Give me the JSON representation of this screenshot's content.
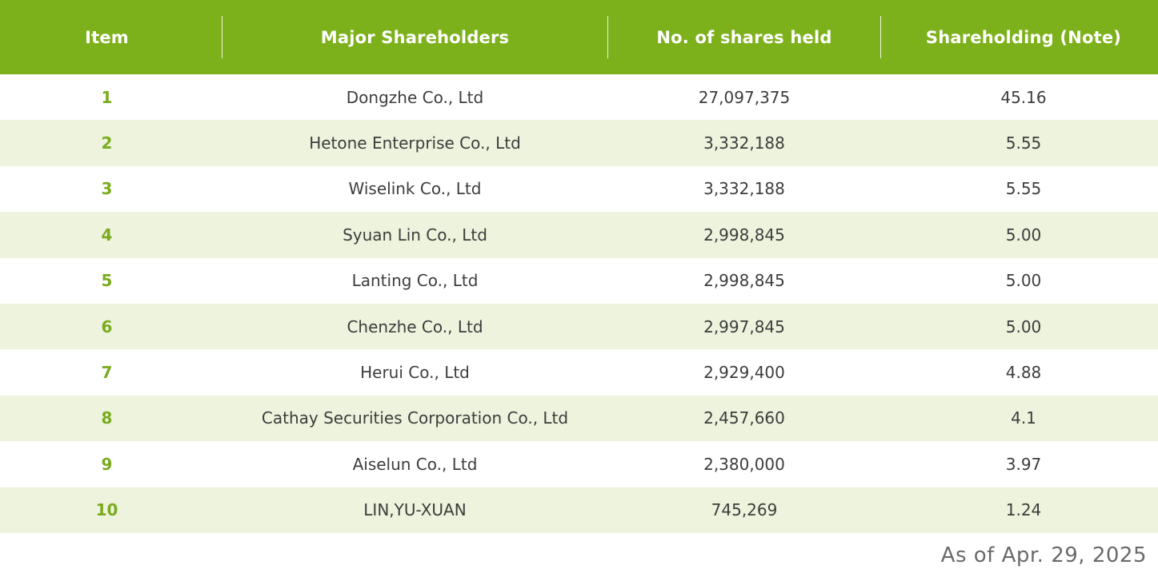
{
  "colors": {
    "header_bg": "#7db11c",
    "item_number": "#7aab1f",
    "row_alt_bg": "#edf3dc"
  },
  "table": {
    "headers": [
      "Item",
      "Major Shareholders",
      "No. of shares held",
      "Shareholding (Note)"
    ],
    "rows": [
      {
        "item": "1",
        "name": "Dongzhe Co., Ltd",
        "shares": "27,097,375",
        "holding": "45.16"
      },
      {
        "item": "2",
        "name": "Hetone Enterprise Co., Ltd",
        "shares": "3,332,188",
        "holding": "5.55"
      },
      {
        "item": "3",
        "name": "Wiselink Co., Ltd",
        "shares": "3,332,188",
        "holding": "5.55"
      },
      {
        "item": "4",
        "name": "Syuan Lin Co., Ltd",
        "shares": "2,998,845",
        "holding": "5.00"
      },
      {
        "item": "5",
        "name": "Lanting Co., Ltd",
        "shares": "2,998,845",
        "holding": "5.00"
      },
      {
        "item": "6",
        "name": "Chenzhe Co., Ltd",
        "shares": "2,997,845",
        "holding": "5.00"
      },
      {
        "item": "7",
        "name": "Herui Co., Ltd",
        "shares": "2,929,400",
        "holding": "4.88"
      },
      {
        "item": "8",
        "name": "Cathay Securities Corporation Co., Ltd",
        "shares": "2,457,660",
        "holding": "4.1"
      },
      {
        "item": "9",
        "name": "Aiselun Co., Ltd",
        "shares": "2,380,000",
        "holding": "3.97"
      },
      {
        "item": "10",
        "name": "LIN,YU-XUAN",
        "shares": "745,269",
        "holding": "1.24"
      }
    ]
  },
  "footnote": "As of Apr. 29, 2025"
}
